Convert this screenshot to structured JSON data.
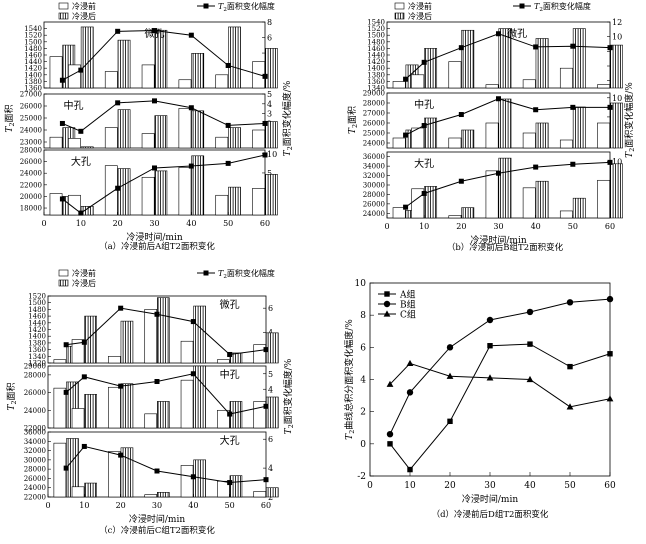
{
  "legend": {
    "before": "冷浸前",
    "after": "冷浸后",
    "amp_prefix": "T",
    "amp_sub": "2",
    "amp_suffix": "面积变化幅度"
  },
  "common": {
    "xlabel": "冷浸时间/min",
    "x_ticks": [
      "0",
      "10",
      "20",
      "30",
      "40",
      "50",
      "60"
    ],
    "y_left_prefix": "T",
    "y_left_sub": "2",
    "y_left_suffix": "面积",
    "y_right_prefix": "T",
    "y_right_sub": "2",
    "y_right_suffix": "面积变化幅度/%"
  },
  "chart_data": [
    {
      "type": "bar",
      "caption": "（a）冷浸前后A组T2面积变化",
      "x": [
        5,
        10,
        20,
        30,
        40,
        50,
        60
      ],
      "subplots": [
        {
          "label": "微孔",
          "ylim": [
            1360,
            1560
          ],
          "yticks": [
            "1360",
            "1380",
            "1400",
            "1420",
            "1440",
            "1460",
            "1480",
            "1500",
            "1520",
            "1540"
          ],
          "y2lim": [
            -0.5,
            8
          ],
          "y2ticks": [
            "0",
            "2",
            "4",
            "6",
            "8"
          ],
          "series": [
            {
              "name": "冷浸前",
              "values": [
                1455,
                1430,
                1410,
                1430,
                1385,
                1400,
                1440
              ]
            },
            {
              "name": "冷浸后",
              "values": [
                1490,
                1545,
                1505,
                1535,
                1465,
                1545,
                1480
              ]
            }
          ],
          "amplitude": [
            0.5,
            1.8,
            6.8,
            6.9,
            6.3,
            2.4,
            1.0
          ]
        },
        {
          "label": "中孔",
          "ylim": [
            22500,
            27000
          ],
          "yticks": [
            "23000",
            "24000",
            "25000",
            "26000",
            "27000"
          ],
          "y2lim": [
            -0.5,
            5
          ],
          "y2ticks": [
            "0",
            "1",
            "2",
            "3",
            "4",
            "5"
          ],
          "series": [
            {
              "name": "冷浸前",
              "values": [
                23400,
                23300,
                24200,
                23700,
                25800,
                23400,
                24000
              ]
            },
            {
              "name": "冷浸后",
              "values": [
                24200,
                22600,
                25700,
                25200,
                25600,
                24200,
                24700
              ]
            }
          ],
          "amplitude": [
            2.0,
            1.2,
            4.1,
            4.3,
            3.6,
            1.8,
            2.0
          ]
        },
        {
          "label": "大孔",
          "ylim": [
            16800,
            28000
          ],
          "yticks": [
            "18000",
            "20000",
            "22000",
            "24000",
            "26000",
            "28000"
          ],
          "y2lim": [
            -6,
            11
          ],
          "y2ticks": [
            "-5",
            "0",
            "5",
            "10"
          ],
          "series": [
            {
              "name": "冷浸前",
              "values": [
                20500,
                20200,
                25300,
                23300,
                25000,
                20200,
                21400
              ]
            },
            {
              "name": "冷浸后",
              "values": [
                20000,
                18300,
                24800,
                24400,
                27000,
                21600,
                23800
              ]
            }
          ],
          "amplitude": [
            -1.8,
            -5.5,
            1.0,
            6.3,
            6.8,
            7.5,
            9.7
          ]
        }
      ]
    },
    {
      "type": "bar",
      "caption": "（b）冷浸前后B组T2面积变化",
      "x": [
        5,
        10,
        20,
        30,
        40,
        50,
        60
      ],
      "subplots": [
        {
          "label": "微孔",
          "ylim": [
            1340,
            1540
          ],
          "yticks": [
            "1340",
            "1360",
            "1380",
            "1400",
            "1420",
            "1440",
            "1460",
            "1480",
            "1500",
            "1520",
            "1540"
          ],
          "y2lim": [
            3,
            12
          ],
          "y2ticks": [
            "4",
            "6",
            "8",
            "10",
            "12"
          ],
          "series": [
            {
              "name": "冷浸前",
              "values": [
                1360,
                1380,
                1420,
                1350,
                1365,
                1400,
                1350
              ]
            },
            {
              "name": "冷浸后",
              "values": [
                1410,
                1460,
                1515,
                1520,
                1490,
                1520,
                1470
              ]
            }
          ],
          "amplitude": [
            4.2,
            6.5,
            8.5,
            10.4,
            8.6,
            8.7,
            8.5
          ]
        },
        {
          "label": "中孔",
          "ylim": [
            23500,
            29000
          ],
          "yticks": [
            "24000",
            "25000",
            "26000",
            "27000",
            "28000",
            "29000"
          ],
          "y2lim": [
            -0.5,
            11
          ],
          "y2ticks": [
            "0",
            "2",
            "4",
            "6",
            "8",
            "10"
          ],
          "series": [
            {
              "name": "冷浸前",
              "values": [
                24500,
                25500,
                24500,
                26000,
                25000,
                24300,
                26000
              ]
            },
            {
              "name": "冷浸后",
              "values": [
                25300,
                26500,
                25300,
                28400,
                26000,
                27600,
                28000
              ]
            }
          ],
          "amplitude": [
            2.2,
            4.2,
            6.5,
            9.8,
            7.5,
            8.0,
            8.0
          ]
        },
        {
          "label": "大孔",
          "ylim": [
            23000,
            37000
          ],
          "yticks": [
            "24000",
            "26000",
            "28000",
            "30000",
            "32000",
            "34000",
            "36000"
          ],
          "y2lim": [
            -2,
            12
          ],
          "y2ticks": [
            "0",
            "5",
            "10"
          ],
          "series": [
            {
              "name": "冷浸前",
              "values": [
                25200,
                29200,
                23500,
                33000,
                29400,
                24500,
                31000
              ]
            },
            {
              "name": "冷浸后",
              "values": [
                24600,
                29700,
                25200,
                35700,
                30800,
                27200,
                34500
              ]
            }
          ],
          "amplitude": [
            0.3,
            3.2,
            5.8,
            7.5,
            8.8,
            9.4,
            9.8
          ]
        }
      ]
    },
    {
      "type": "bar",
      "caption": "（c）冷浸前后C组T2面积变化",
      "x": [
        5,
        10,
        20,
        30,
        40,
        50,
        60
      ],
      "subplots": [
        {
          "label": "微孔",
          "ylim": [
            1320,
            1520
          ],
          "yticks": [
            "1320",
            "1340",
            "1360",
            "1380",
            "1400",
            "1420",
            "1440",
            "1460",
            "1480",
            "1500",
            "1520"
          ],
          "y2lim": [
            1.5,
            7
          ],
          "y2ticks": [
            "2",
            "4",
            "6"
          ],
          "series": [
            {
              "name": "冷浸前",
              "values": [
                1330,
                1390,
                1340,
                1480,
                1385,
                1330,
                1375
              ]
            },
            {
              "name": "冷浸后",
              "values": [
                1370,
                1460,
                1445,
                1515,
                1490,
                1350,
                1410
              ]
            }
          ],
          "amplitude": [
            3.0,
            3.2,
            6.0,
            5.5,
            4.9,
            2.2,
            2.6
          ]
        },
        {
          "label": "中孔",
          "ylim": [
            22000,
            29000
          ],
          "yticks": [
            "22000",
            "24000",
            "26000",
            "28000",
            "29000"
          ],
          "y2lim": [
            1.5,
            5.5
          ],
          "y2ticks": [
            "2",
            "3",
            "4",
            "5"
          ],
          "series": [
            {
              "name": "冷浸前",
              "values": [
                26500,
                24200,
                26600,
                23600,
                27400,
                24000,
                25000
              ]
            },
            {
              "name": "冷浸后",
              "values": [
                27200,
                25800,
                27000,
                25000,
                29000,
                25000,
                25500
              ]
            }
          ],
          "amplitude": [
            3.8,
            4.8,
            4.2,
            4.5,
            5.0,
            2.4,
            2.9
          ]
        },
        {
          "label": "大孔",
          "ylim": [
            22000,
            36000
          ],
          "yticks": [
            "22000",
            "24000",
            "26000",
            "28000",
            "30000",
            "32000",
            "34000",
            "36000"
          ],
          "y2lim": [
            2,
            6.5
          ],
          "y2ticks": [
            "2",
            "4",
            "6"
          ],
          "series": [
            {
              "name": "冷浸前",
              "values": [
                33600,
                24200,
                31800,
                22500,
                28800,
                25400,
                23200
              ]
            },
            {
              "name": "冷浸后",
              "values": [
                34600,
                25000,
                32600,
                23000,
                30000,
                26600,
                24000
              ]
            }
          ],
          "amplitude": [
            4.0,
            5.5,
            4.9,
            3.8,
            3.4,
            3.0,
            3.2
          ]
        }
      ]
    },
    {
      "type": "line",
      "caption": "（d）冷浸前后D组T2面积变化",
      "xlabel": "冷浸时间/min",
      "ylabel": "T2曲线总积分面积变化幅度/%",
      "x": [
        5,
        10,
        20,
        30,
        40,
        50,
        60
      ],
      "xlim": [
        0,
        60
      ],
      "ylim": [
        -2,
        10
      ],
      "x_ticks": [
        "0",
        "10",
        "20",
        "30",
        "40",
        "50",
        "60"
      ],
      "y_ticks": [
        "-2",
        "0",
        "2",
        "4",
        "6",
        "8",
        "10"
      ],
      "series": [
        {
          "name": "A组",
          "marker": "square",
          "values": [
            0.0,
            -1.6,
            1.4,
            6.1,
            6.2,
            4.8,
            5.6
          ]
        },
        {
          "name": "B组",
          "marker": "circle",
          "values": [
            0.6,
            3.2,
            6.0,
            7.7,
            8.2,
            8.8,
            9.0
          ]
        },
        {
          "name": "C组",
          "marker": "triangle",
          "values": [
            3.7,
            5.0,
            4.2,
            4.1,
            4.0,
            2.3,
            2.8
          ]
        }
      ],
      "legend": "top-left"
    }
  ]
}
